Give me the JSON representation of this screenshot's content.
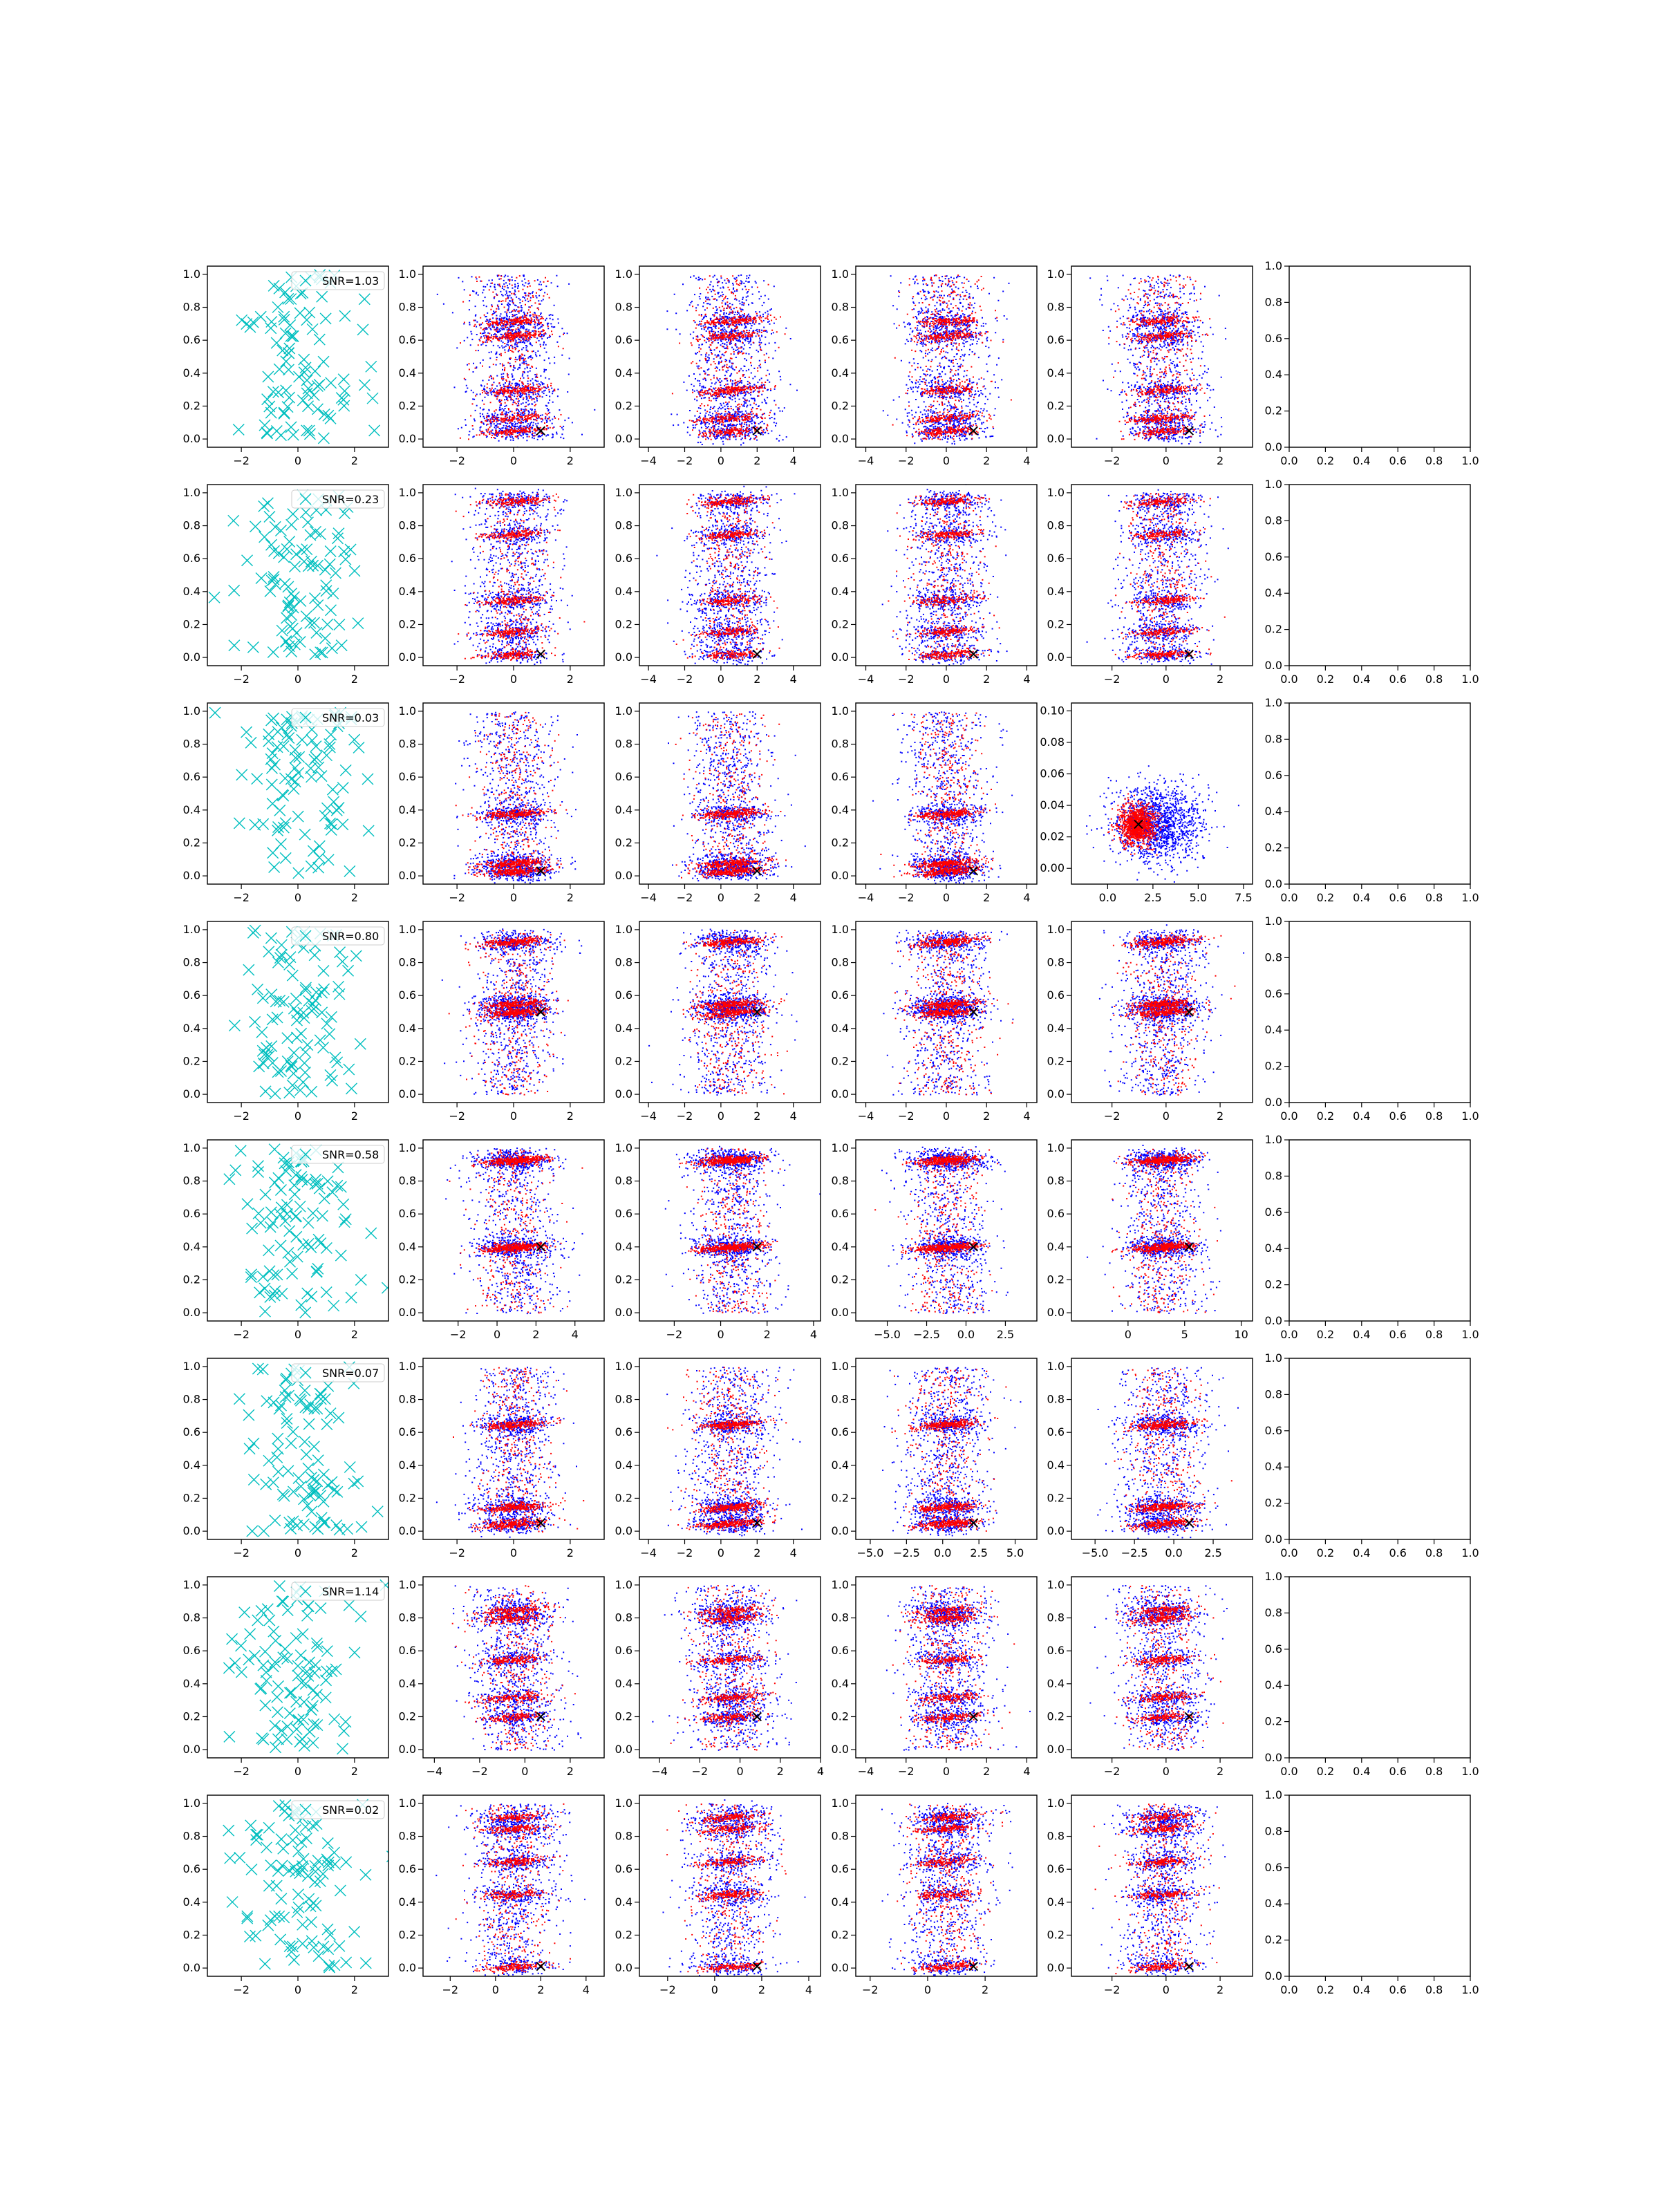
{
  "figure": {
    "background": "#ffffff",
    "colors": {
      "scatter_x": "#00bfbf",
      "blue": "#0000ff",
      "red": "#ff0000",
      "marker": "#000000"
    }
  },
  "columns": [
    {
      "kind": "cyan-x",
      "xlim": [
        -3.2,
        3.2
      ],
      "ylim": [
        -0.05,
        1.05
      ],
      "xticks": [
        -2,
        0,
        2
      ],
      "yticks": [
        0.0,
        0.2,
        0.4,
        0.6,
        0.8,
        1.0
      ],
      "xticklabels": [
        "−2",
        "0",
        "2"
      ],
      "yticklabels": [
        "0.0",
        "0.2",
        "0.4",
        "0.6",
        "0.8",
        "1.0"
      ]
    },
    {
      "kind": "red-blue",
      "xlim": [
        -3.2,
        3.2
      ],
      "ylim": [
        -0.05,
        1.05
      ],
      "xticks": [
        -2,
        0,
        2
      ],
      "yticks": [
        0.0,
        0.2,
        0.4,
        0.6,
        0.8,
        1.0
      ],
      "xticklabels": [
        "−2",
        "0",
        "2"
      ],
      "yticklabels": [
        "0.0",
        "0.2",
        "0.4",
        "0.6",
        "0.8",
        "1.0"
      ]
    },
    {
      "kind": "red-blue",
      "xlim": [
        -4.5,
        5.5
      ],
      "ylim": [
        -0.05,
        1.05
      ],
      "xticks": [
        -4,
        -2,
        0,
        2,
        4
      ],
      "yticks": [
        0.0,
        0.2,
        0.4,
        0.6,
        0.8,
        1.0
      ],
      "xticklabels": [
        "−4",
        "−2",
        "0",
        "2",
        "4"
      ],
      "yticklabels": [
        "0.0",
        "0.2",
        "0.4",
        "0.6",
        "0.8",
        "1.0"
      ]
    },
    {
      "kind": "red-blue",
      "xlim": [
        -4.5,
        4.5
      ],
      "ylim": [
        -0.05,
        1.05
      ],
      "xticks": [
        -4,
        -2,
        0,
        2,
        4
      ],
      "yticks": [
        0.0,
        0.2,
        0.4,
        0.6,
        0.8,
        1.0
      ],
      "xticklabels": [
        "−4",
        "−2",
        "0",
        "2",
        "4"
      ],
      "yticklabels": [
        "0.0",
        "0.2",
        "0.4",
        "0.6",
        "0.8",
        "1.0"
      ]
    },
    {
      "kind": "red-blue",
      "xlim": [
        -3.5,
        3.2
      ],
      "ylim": [
        -0.05,
        1.05
      ],
      "xticks": [
        -2,
        0,
        2
      ],
      "yticks": [
        0.0,
        0.2,
        0.4,
        0.6,
        0.8,
        1.0
      ],
      "xticklabels": [
        "−2",
        "0",
        "2"
      ],
      "yticklabels": [
        "0.0",
        "0.2",
        "0.4",
        "0.6",
        "0.8",
        "1.0"
      ]
    },
    {
      "kind": "empty",
      "xlim": [
        0,
        1
      ],
      "ylim": [
        0,
        1
      ],
      "xticks": [
        0.0,
        0.2,
        0.4,
        0.6,
        0.8,
        1.0
      ],
      "yticks": [
        0.0,
        0.2,
        0.4,
        0.6,
        0.8,
        1.0
      ],
      "xticklabels": [
        "0.0",
        "0.2",
        "0.4",
        "0.6",
        "0.8",
        "1.0"
      ],
      "yticklabels": [
        "0.0",
        "0.2",
        "0.4",
        "0.6",
        "0.8",
        "1.0"
      ]
    }
  ],
  "chart_data": [
    {
      "type": "scatter",
      "row": 1,
      "legend": "SNR=1.03",
      "bands": [
        0.05,
        0.13,
        0.3,
        0.63,
        0.72
      ]
    },
    {
      "type": "scatter",
      "row": 2,
      "legend": "SNR=0.23",
      "bands": [
        0.02,
        0.16,
        0.35,
        0.75,
        0.95
      ]
    },
    {
      "type": "scatter",
      "row": 3,
      "legend": "SNR=0.03",
      "bands": [
        0.03,
        0.08,
        0.38
      ],
      "panel5": {
        "ylim": [
          -0.01,
          0.105
        ],
        "xlim": [
          -2.0,
          8.0
        ],
        "yticks": [
          0.0,
          0.02,
          0.04,
          0.06,
          0.08,
          0.1
        ],
        "yticklabels": [
          "0.00",
          "0.02",
          "0.04",
          "0.06",
          "0.08",
          "0.10"
        ],
        "xticks": [
          0.0,
          2.5,
          5.0,
          7.5
        ],
        "xticklabels": [
          "0.0",
          "2.5",
          "5.0",
          "7.5"
        ]
      }
    },
    {
      "type": "scatter",
      "row": 4,
      "legend": "SNR=0.80",
      "bands": [
        0.5,
        0.55,
        0.93
      ]
    },
    {
      "type": "scatter",
      "row": 5,
      "legend": "SNR=0.58",
      "bands": [
        0.4,
        0.93
      ],
      "panel2": {
        "xlim": [
          -3.8,
          5.5
        ],
        "xticks": [
          -2,
          0,
          2,
          4
        ],
        "xticklabels": [
          "−2",
          "0",
          "2",
          "4"
        ]
      },
      "panel3": {
        "xlim": [
          -3.5,
          4.3
        ],
        "xticks": [
          -2,
          0,
          2,
          4
        ],
        "xticklabels": [
          "−2",
          "0",
          "2",
          "4"
        ]
      },
      "panel4": {
        "xlim": [
          -7.0,
          4.5
        ],
        "xticks": [
          -5.0,
          -2.5,
          0.0,
          2.5
        ],
        "xticklabels": [
          "−5.0",
          "−2.5",
          "0.0",
          "2.5"
        ]
      },
      "panel5": {
        "xlim": [
          -5.0,
          11.0
        ],
        "xticks": [
          0,
          5,
          10
        ],
        "xticklabels": [
          "0",
          "5",
          "10"
        ]
      }
    },
    {
      "type": "scatter",
      "row": 6,
      "legend": "SNR=0.07",
      "bands": [
        0.05,
        0.15,
        0.65
      ],
      "panel4": {
        "xlim": [
          -6.0,
          6.5
        ],
        "xticks": [
          -5.0,
          -2.5,
          0.0,
          2.5,
          5.0
        ],
        "xticklabels": [
          "−5.0",
          "−2.5",
          "0.0",
          "2.5",
          "5.0"
        ]
      },
      "panel5": {
        "xlim": [
          -6.5,
          5.0
        ],
        "xticks": [
          -5.0,
          -2.5,
          0.0,
          2.5
        ],
        "xticklabels": [
          "−5.0",
          "−2.5",
          "0.0",
          "2.5"
        ]
      }
    },
    {
      "type": "scatter",
      "row": 7,
      "legend": "SNR=1.14",
      "bands": [
        0.2,
        0.32,
        0.55,
        0.8,
        0.85
      ],
      "panel2": {
        "xlim": [
          -4.5,
          3.5
        ],
        "xticks": [
          -4,
          -2,
          0,
          2
        ],
        "xticklabels": [
          "−4",
          "−2",
          "0",
          "2"
        ]
      },
      "panel3": {
        "xlim": [
          -5.0,
          4.0
        ],
        "xticks": [
          -4,
          -2,
          0,
          2,
          4
        ],
        "xticklabels": [
          "−4",
          "−2",
          "0",
          "2",
          "4"
        ]
      }
    },
    {
      "type": "scatter",
      "row": 8,
      "legend": "SNR=0.02",
      "bands": [
        0.01,
        0.45,
        0.65,
        0.85,
        0.92
      ],
      "panel2": {
        "xlim": [
          -3.2,
          4.8
        ],
        "xticks": [
          -2,
          0,
          2,
          4
        ],
        "xticklabels": [
          "−2",
          "0",
          "2",
          "4"
        ]
      },
      "panel3": {
        "xlim": [
          -3.2,
          4.5
        ],
        "xticks": [
          -2,
          0,
          2,
          4
        ],
        "xticklabels": [
          "−2",
          "0",
          "2",
          "4"
        ]
      },
      "panel4": {
        "xlim": [
          -2.5,
          3.8
        ],
        "xticks": [
          -2,
          0,
          2
        ],
        "xticklabels": [
          "−2",
          "0",
          "2"
        ]
      }
    }
  ]
}
